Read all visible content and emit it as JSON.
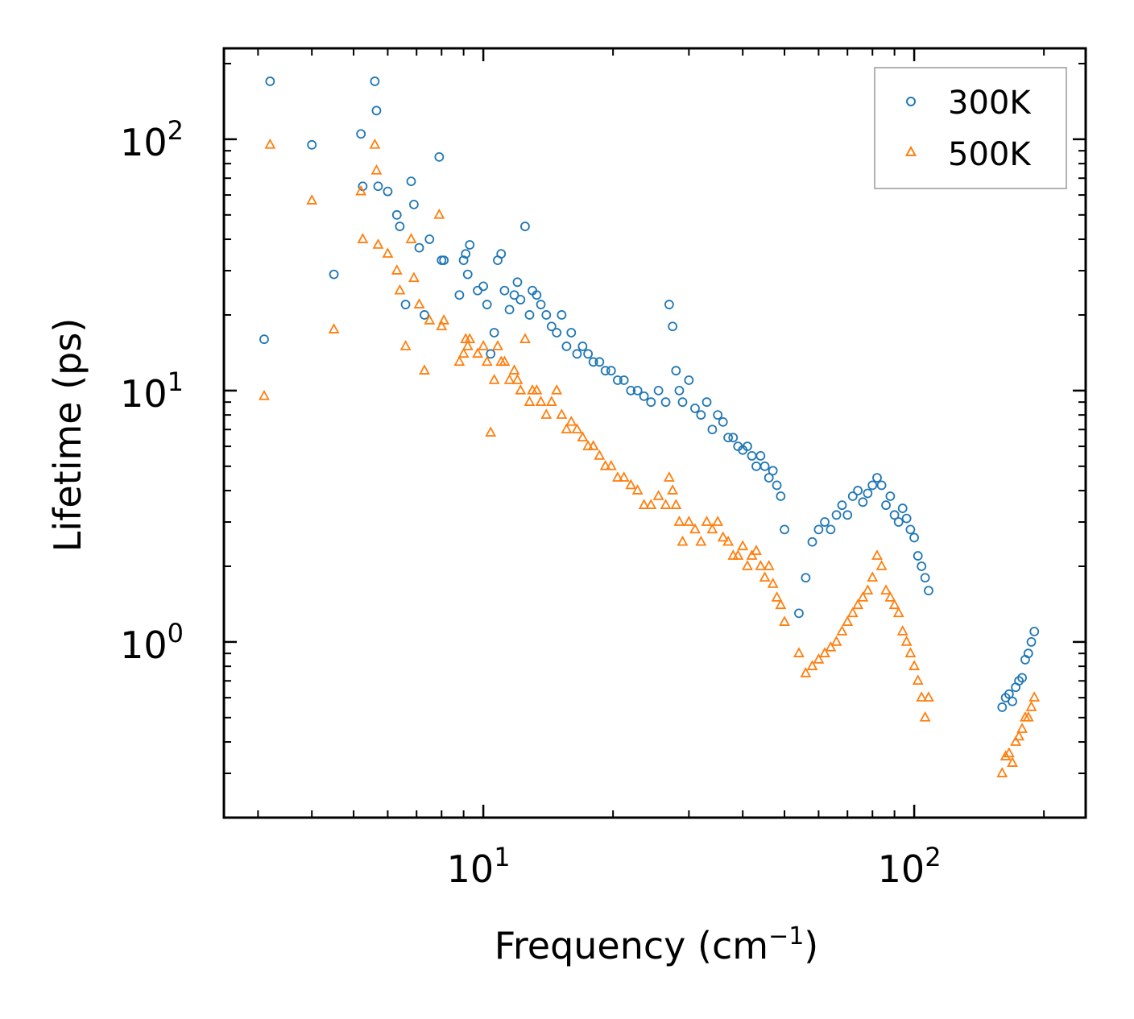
{
  "chart_data": {
    "type": "scatter",
    "xscale": "log",
    "yscale": "log",
    "xlabel": "Frequency (cm",
    "xlabel_sup": "−1",
    "xlabel_close": ")",
    "ylabel": "Lifetime (ps)",
    "xlim": [
      2.5,
      250
    ],
    "ylim": [
      0.2,
      230
    ],
    "x_ticks": [
      {
        "value": 10,
        "base": "10",
        "exp": "1"
      },
      {
        "value": 100,
        "base": "10",
        "exp": "2"
      }
    ],
    "y_ticks": [
      {
        "value": 1,
        "base": "10",
        "exp": "0"
      },
      {
        "value": 10,
        "base": "10",
        "exp": "1"
      },
      {
        "value": 100,
        "base": "10",
        "exp": "2"
      }
    ],
    "legend_position": "top-right",
    "series": [
      {
        "name": "300K",
        "marker": "circle",
        "color": "#1f77b4",
        "x": [
          3.1,
          3.2,
          4.0,
          4.5,
          5.2,
          5.25,
          5.6,
          5.65,
          5.7,
          6.0,
          6.3,
          6.4,
          6.6,
          6.8,
          6.9,
          7.1,
          7.3,
          7.5,
          7.9,
          8.0,
          8.1,
          8.8,
          9.0,
          9.1,
          9.2,
          9.3,
          9.7,
          10.0,
          10.2,
          10.4,
          10.6,
          10.8,
          11.0,
          11.2,
          11.5,
          11.8,
          12.0,
          12.2,
          12.5,
          12.8,
          13.0,
          13.3,
          13.6,
          14.0,
          14.4,
          14.8,
          15.2,
          15.6,
          16.0,
          16.5,
          17.0,
          17.5,
          18.0,
          18.6,
          19.2,
          19.8,
          20.5,
          21.2,
          22.0,
          22.8,
          23.6,
          24.5,
          25.5,
          26.5,
          27.0,
          27.5,
          28.0,
          28.5,
          29.0,
          30.0,
          31.0,
          32.0,
          33.0,
          34.0,
          35.0,
          36.0,
          37.0,
          38.0,
          39.0,
          40.0,
          41.0,
          42.0,
          43.0,
          44.0,
          45.0,
          46.0,
          47.0,
          48.0,
          49.0,
          50.0,
          54.0,
          56.0,
          58.0,
          60.0,
          62.0,
          64.0,
          66.0,
          68.0,
          70.0,
          72.0,
          74.0,
          76.0,
          78.0,
          80.0,
          82.0,
          84.0,
          86.0,
          88.0,
          90.0,
          92.0,
          94.0,
          96.0,
          98.0,
          100.0,
          102.0,
          104.0,
          106.0,
          108.0,
          160.0,
          163.0,
          166.0,
          169.0,
          172.0,
          175.0,
          178.0,
          181.0,
          184.0,
          187.0,
          190.0
        ],
        "y": [
          16,
          170,
          95,
          29,
          105,
          65,
          170,
          130,
          65,
          62,
          50,
          45,
          22,
          68,
          55,
          37,
          20,
          40,
          85,
          33,
          33,
          24,
          33,
          35,
          29,
          38,
          25,
          26,
          22,
          14,
          17,
          33,
          35,
          25,
          21,
          24,
          27,
          23,
          45,
          20,
          25,
          24,
          22,
          20,
          18,
          17,
          20,
          15,
          17,
          14,
          15,
          14,
          13,
          13,
          12,
          12,
          11,
          11,
          10,
          10,
          9.5,
          9,
          10,
          9,
          22,
          18,
          12,
          10,
          9,
          11,
          8.5,
          8,
          9,
          7,
          8,
          7.5,
          6.5,
          6.5,
          6,
          5.8,
          6,
          5.5,
          5,
          5.5,
          5,
          4.5,
          4.8,
          4.2,
          3.8,
          2.8,
          1.3,
          1.8,
          2.5,
          2.8,
          3.0,
          2.8,
          3.2,
          3.5,
          3.2,
          3.8,
          4.0,
          3.6,
          3.9,
          4.2,
          4.5,
          4.2,
          3.5,
          3.8,
          3.2,
          3.0,
          3.4,
          3.1,
          2.8,
          2.6,
          2.2,
          2.0,
          1.8,
          1.6,
          0.55,
          0.6,
          0.62,
          0.58,
          0.66,
          0.7,
          0.72,
          0.85,
          0.9,
          1.0,
          1.1
        ]
      },
      {
        "name": "500K",
        "marker": "triangle",
        "color": "#ff7f0e",
        "x": [
          3.1,
          3.2,
          4.0,
          4.5,
          5.2,
          5.25,
          5.6,
          5.65,
          5.7,
          6.0,
          6.3,
          6.4,
          6.6,
          6.8,
          6.9,
          7.1,
          7.3,
          7.5,
          7.9,
          8.0,
          8.1,
          8.8,
          9.0,
          9.1,
          9.2,
          9.3,
          9.7,
          10.0,
          10.2,
          10.4,
          10.6,
          10.8,
          11.0,
          11.2,
          11.5,
          11.8,
          12.0,
          12.2,
          12.5,
          12.8,
          13.0,
          13.3,
          13.6,
          14.0,
          14.4,
          14.8,
          15.2,
          15.6,
          16.0,
          16.5,
          17.0,
          17.5,
          18.0,
          18.6,
          19.2,
          19.8,
          20.5,
          21.2,
          22.0,
          22.8,
          23.6,
          24.5,
          25.5,
          26.5,
          27.0,
          27.5,
          28.0,
          28.5,
          29.0,
          30.0,
          31.0,
          32.0,
          33.0,
          34.0,
          35.0,
          36.0,
          37.0,
          38.0,
          39.0,
          40.0,
          41.0,
          42.0,
          43.0,
          44.0,
          45.0,
          46.0,
          47.0,
          48.0,
          49.0,
          50.0,
          54.0,
          56.0,
          58.0,
          60.0,
          62.0,
          64.0,
          66.0,
          68.0,
          70.0,
          72.0,
          74.0,
          76.0,
          78.0,
          80.0,
          82.0,
          84.0,
          86.0,
          88.0,
          90.0,
          92.0,
          94.0,
          96.0,
          98.0,
          100.0,
          102.0,
          104.0,
          106.0,
          108.0,
          160.0,
          163.0,
          166.0,
          169.0,
          172.0,
          175.0,
          178.0,
          181.0,
          184.0,
          187.0,
          190.0
        ],
        "y": [
          9.5,
          95,
          57,
          17.5,
          62,
          40,
          95,
          75,
          38,
          35,
          30,
          25,
          15,
          40,
          28,
          22,
          12,
          19,
          50,
          18,
          19,
          13,
          14,
          16,
          15,
          16,
          14,
          15,
          13,
          6.8,
          11,
          15,
          13,
          13,
          11,
          12,
          11,
          10,
          16,
          9,
          10,
          10,
          9,
          8,
          9,
          10,
          8,
          7,
          7.5,
          7,
          6.5,
          6,
          6,
          5.5,
          5,
          5,
          4.5,
          4.5,
          4.2,
          4,
          3.5,
          3.5,
          3.8,
          3.5,
          4.5,
          4,
          3.5,
          3,
          2.5,
          3,
          2.8,
          2.5,
          3,
          2.8,
          3,
          2.6,
          2.5,
          2.2,
          2.2,
          2.4,
          2.0,
          2.2,
          2.3,
          2.0,
          1.8,
          2.0,
          1.7,
          1.5,
          1.4,
          1.2,
          0.9,
          0.75,
          0.8,
          0.85,
          0.9,
          0.95,
          1.0,
          1.1,
          1.2,
          1.3,
          1.4,
          1.5,
          1.6,
          1.8,
          2.2,
          2.0,
          1.6,
          1.5,
          1.4,
          1.3,
          1.1,
          1.0,
          0.9,
          0.8,
          0.7,
          0.6,
          0.5,
          0.6,
          0.3,
          0.35,
          0.36,
          0.33,
          0.4,
          0.42,
          0.45,
          0.5,
          0.5,
          0.55,
          0.6
        ]
      }
    ]
  }
}
